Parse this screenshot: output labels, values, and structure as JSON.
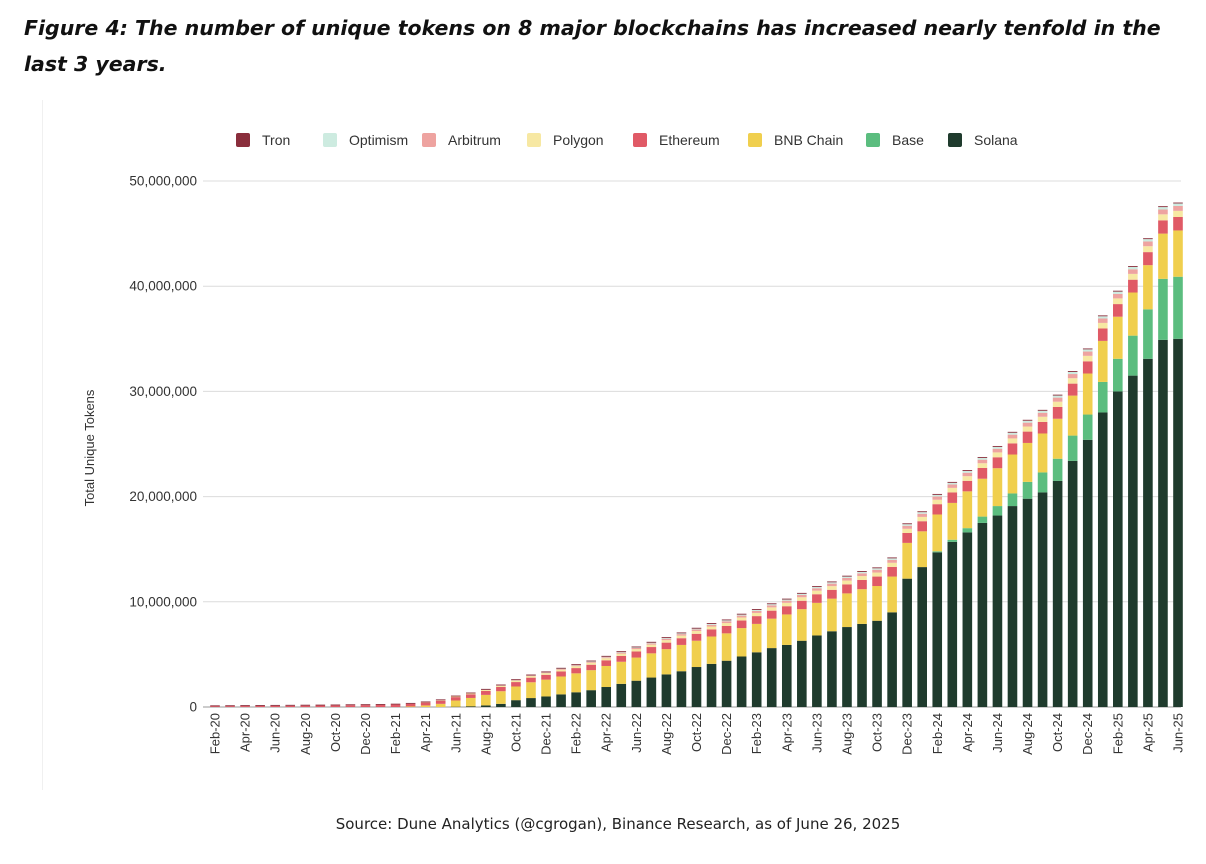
{
  "figure": {
    "title": "Figure 4: The number of unique tokens on 8 major blockchains has increased nearly tenfold in the last 3 years.",
    "source": "Source: Dune Analytics (@cgrogan), Binance Research, as of June 26, 2025"
  },
  "chart_data": {
    "type": "bar",
    "stacked": true,
    "title": "",
    "xlabel": "",
    "ylabel": "Total Unique Tokens",
    "ylim": [
      0,
      50000000
    ],
    "yticks": [
      0,
      10000000,
      20000000,
      30000000,
      40000000,
      50000000
    ],
    "ytick_labels": [
      "0",
      "10,000,000",
      "20,000,000",
      "30,000,000",
      "40,000,000",
      "50,000,000"
    ],
    "grid": true,
    "legend_position": "top",
    "categories": [
      "Feb-20",
      "Mar-20",
      "Apr-20",
      "May-20",
      "Jun-20",
      "Jul-20",
      "Aug-20",
      "Sep-20",
      "Oct-20",
      "Nov-20",
      "Dec-20",
      "Jan-21",
      "Feb-21",
      "Mar-21",
      "Apr-21",
      "May-21",
      "Jun-21",
      "Jul-21",
      "Aug-21",
      "Sep-21",
      "Oct-21",
      "Nov-21",
      "Dec-21",
      "Jan-22",
      "Feb-22",
      "Mar-22",
      "Apr-22",
      "May-22",
      "Jun-22",
      "Jul-22",
      "Aug-22",
      "Sep-22",
      "Oct-22",
      "Nov-22",
      "Dec-22",
      "Jan-23",
      "Feb-23",
      "Mar-23",
      "Apr-23",
      "May-23",
      "Jun-23",
      "Jul-23",
      "Aug-23",
      "Sep-23",
      "Oct-23",
      "Nov-23",
      "Dec-23",
      "Jan-24",
      "Feb-24",
      "Mar-24",
      "Apr-24",
      "May-24",
      "Jun-24",
      "Jul-24",
      "Aug-24",
      "Sep-24",
      "Oct-24",
      "Nov-24",
      "Dec-24",
      "Jan-25",
      "Feb-25",
      "Mar-25",
      "Apr-25",
      "May-25",
      "Jun-25"
    ],
    "tick_labels": [
      "Feb-20",
      "Apr-20",
      "Jun-20",
      "Aug-20",
      "Oct-20",
      "Dec-20",
      "Feb-21",
      "Apr-21",
      "Jun-21",
      "Aug-21",
      "Oct-21",
      "Dec-21",
      "Feb-22",
      "Apr-22",
      "Jun-22",
      "Aug-22",
      "Oct-22",
      "Dec-22",
      "Feb-23",
      "Apr-23",
      "Jun-23",
      "Aug-23",
      "Oct-23",
      "Dec-23",
      "Feb-24",
      "Apr-24",
      "Jun-24",
      "Aug-24",
      "Oct-24",
      "Dec-24",
      "Feb-25",
      "Apr-25",
      "Jun-25"
    ],
    "series": [
      {
        "name": "Solana",
        "color": "#1f3b2d",
        "values": [
          0,
          0,
          0,
          0,
          0,
          0,
          0,
          0,
          0,
          0,
          0,
          0,
          0,
          0,
          0,
          0,
          20000,
          60000,
          150000,
          300000,
          650000,
          850000,
          1000000,
          1200000,
          1400000,
          1600000,
          1900000,
          2200000,
          2500000,
          2800000,
          3100000,
          3400000,
          3800000,
          4100000,
          4400000,
          4800000,
          5200000,
          5600000,
          5900000,
          6300000,
          6800000,
          7200000,
          7600000,
          7900000,
          8200000,
          9000000,
          12200000,
          13300000,
          14700000,
          15700000,
          16600000,
          17500000,
          18200000,
          19100000,
          19800000,
          20400000,
          21500000,
          23400000,
          25400000,
          28000000,
          30000000,
          31500000,
          33100000,
          34900000,
          35000000
        ]
      },
      {
        "name": "Base",
        "color": "#5bbd7f",
        "values": [
          0,
          0,
          0,
          0,
          0,
          0,
          0,
          0,
          0,
          0,
          0,
          0,
          0,
          0,
          0,
          0,
          0,
          0,
          0,
          0,
          0,
          0,
          0,
          0,
          0,
          0,
          0,
          0,
          0,
          0,
          0,
          0,
          0,
          0,
          0,
          0,
          0,
          0,
          0,
          0,
          0,
          0,
          0,
          0,
          0,
          0,
          0,
          0,
          100000,
          200000,
          400000,
          600000,
          900000,
          1200000,
          1600000,
          1900000,
          2100000,
          2400000,
          2400000,
          2900000,
          3100000,
          3800000,
          4700000,
          5800000,
          5900000
        ]
      },
      {
        "name": "BNB Chain",
        "color": "#f0cf4e",
        "values": [
          0,
          0,
          0,
          0,
          0,
          0,
          0,
          0,
          0,
          0,
          0,
          0,
          0,
          50000,
          150000,
          300000,
          600000,
          800000,
          1000000,
          1200000,
          1300000,
          1500000,
          1600000,
          1700000,
          1800000,
          1900000,
          2000000,
          2100000,
          2200000,
          2300000,
          2400000,
          2500000,
          2500000,
          2600000,
          2600000,
          2700000,
          2700000,
          2800000,
          2900000,
          3000000,
          3100000,
          3100000,
          3200000,
          3300000,
          3300000,
          3400000,
          3400000,
          3400000,
          3500000,
          3500000,
          3500000,
          3600000,
          3600000,
          3700000,
          3700000,
          3700000,
          3800000,
          3800000,
          3900000,
          3900000,
          4000000,
          4100000,
          4200000,
          4300000,
          4400000
        ]
      },
      {
        "name": "Ethereum",
        "color": "#e05a66",
        "values": [
          70000,
          80000,
          90000,
          100000,
          110000,
          120000,
          130000,
          140000,
          150000,
          170000,
          180000,
          200000,
          230000,
          250000,
          270000,
          300000,
          320000,
          350000,
          370000,
          400000,
          420000,
          440000,
          460000,
          480000,
          500000,
          520000,
          540000,
          560000,
          580000,
          600000,
          620000,
          640000,
          660000,
          680000,
          700000,
          720000,
          740000,
          760000,
          780000,
          800000,
          820000,
          840000,
          860000,
          880000,
          900000,
          920000,
          940000,
          960000,
          980000,
          1000000,
          1000000,
          1020000,
          1040000,
          1060000,
          1080000,
          1100000,
          1120000,
          1140000,
          1160000,
          1180000,
          1200000,
          1220000,
          1240000,
          1260000,
          1280000
        ]
      },
      {
        "name": "Polygon",
        "color": "#f7e8a3",
        "values": [
          0,
          0,
          0,
          0,
          0,
          0,
          0,
          0,
          0,
          0,
          0,
          0,
          0,
          0,
          20000,
          40000,
          60000,
          80000,
          100000,
          120000,
          140000,
          150000,
          160000,
          170000,
          180000,
          190000,
          200000,
          210000,
          220000,
          230000,
          240000,
          250000,
          260000,
          270000,
          280000,
          290000,
          300000,
          310000,
          320000,
          330000,
          340000,
          350000,
          360000,
          370000,
          380000,
          390000,
          400000,
          410000,
          420000,
          430000,
          440000,
          450000,
          460000,
          470000,
          480000,
          490000,
          500000,
          510000,
          520000,
          530000,
          540000,
          550000,
          560000,
          570000,
          580000
        ]
      },
      {
        "name": "Arbitrum",
        "color": "#eea3a0",
        "values": [
          0,
          0,
          0,
          0,
          0,
          0,
          0,
          0,
          0,
          0,
          0,
          0,
          0,
          0,
          0,
          0,
          0,
          0,
          10000,
          20000,
          30000,
          40000,
          50000,
          60000,
          70000,
          80000,
          90000,
          100000,
          110000,
          120000,
          130000,
          140000,
          150000,
          160000,
          170000,
          180000,
          190000,
          200000,
          210000,
          220000,
          230000,
          240000,
          250000,
          260000,
          270000,
          280000,
          290000,
          300000,
          310000,
          320000,
          330000,
          340000,
          350000,
          360000,
          370000,
          380000,
          390000,
          400000,
          410000,
          420000,
          430000,
          440000,
          450000,
          460000,
          470000
        ]
      },
      {
        "name": "Optimism",
        "color": "#cdebe0",
        "values": [
          0,
          0,
          0,
          0,
          0,
          0,
          0,
          0,
          0,
          0,
          0,
          0,
          0,
          0,
          0,
          0,
          0,
          0,
          5000,
          10000,
          15000,
          20000,
          25000,
          30000,
          35000,
          40000,
          45000,
          50000,
          55000,
          60000,
          65000,
          70000,
          75000,
          80000,
          85000,
          90000,
          95000,
          100000,
          105000,
          110000,
          115000,
          120000,
          125000,
          130000,
          135000,
          140000,
          145000,
          150000,
          155000,
          160000,
          165000,
          170000,
          175000,
          180000,
          185000,
          190000,
          195000,
          200000,
          205000,
          210000,
          215000,
          220000,
          225000,
          230000,
          235000
        ]
      },
      {
        "name": "Tron",
        "color": "#8a2e3c",
        "values": [
          10000,
          10000,
          10000,
          10000,
          10000,
          10000,
          10000,
          10000,
          10000,
          10000,
          10000,
          10000,
          10000,
          10000,
          10000,
          10000,
          10000,
          10000,
          10000,
          10000,
          10000,
          10000,
          10000,
          10000,
          10000,
          10000,
          10000,
          10000,
          10000,
          10000,
          10000,
          10000,
          10000,
          10000,
          10000,
          10000,
          10000,
          10000,
          10000,
          10000,
          10000,
          10000,
          10000,
          10000,
          10000,
          10000,
          10000,
          10000,
          10000,
          10000,
          10000,
          10000,
          10000,
          10000,
          10000,
          10000,
          10000,
          10000,
          10000,
          10000,
          10000,
          10000,
          10000,
          10000,
          10000
        ]
      }
    ],
    "legend_order": [
      "Tron",
      "Optimism",
      "Arbitrum",
      "Polygon",
      "Ethereum",
      "BNB Chain",
      "Base",
      "Solana"
    ]
  }
}
